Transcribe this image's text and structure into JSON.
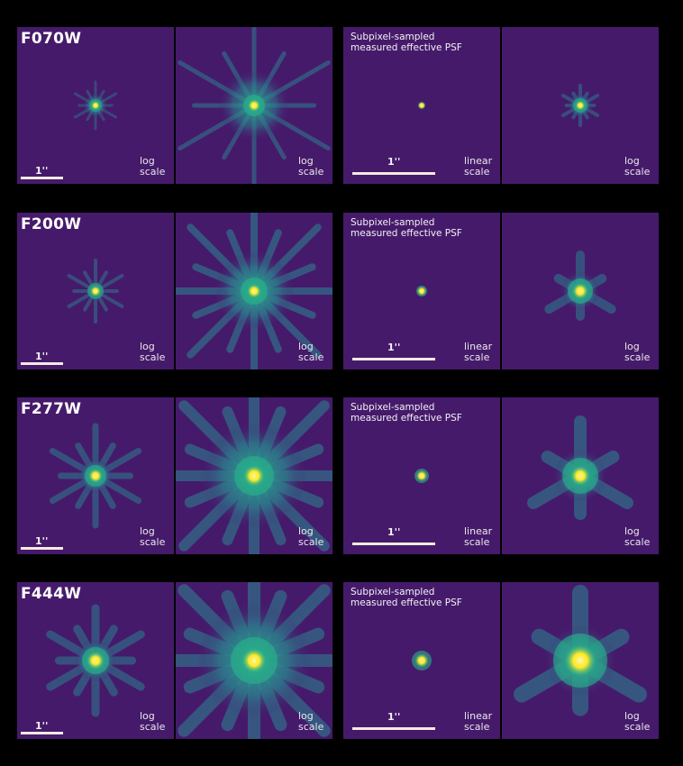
{
  "colors": {
    "background": "#000000",
    "panel": "#461a6b",
    "psf_halo": "#2c7f8e",
    "psf_mid": "#28b48a",
    "psf_core": "#fde725"
  },
  "common": {
    "subpixel_label": "Subpixel-sampled measured effective PSF",
    "subpixel_line1": "Subpixel-sampled",
    "subpixel_line2": "measured effective PSF",
    "log_line1": "log",
    "log_line2": "scale",
    "linear_line1": "linear",
    "linear_line2": "scale",
    "scalebar_label": "1''"
  },
  "rows": [
    {
      "filter": "F070W"
    },
    {
      "filter": "F200W"
    },
    {
      "filter": "F277W"
    },
    {
      "filter": "F444W"
    }
  ]
}
